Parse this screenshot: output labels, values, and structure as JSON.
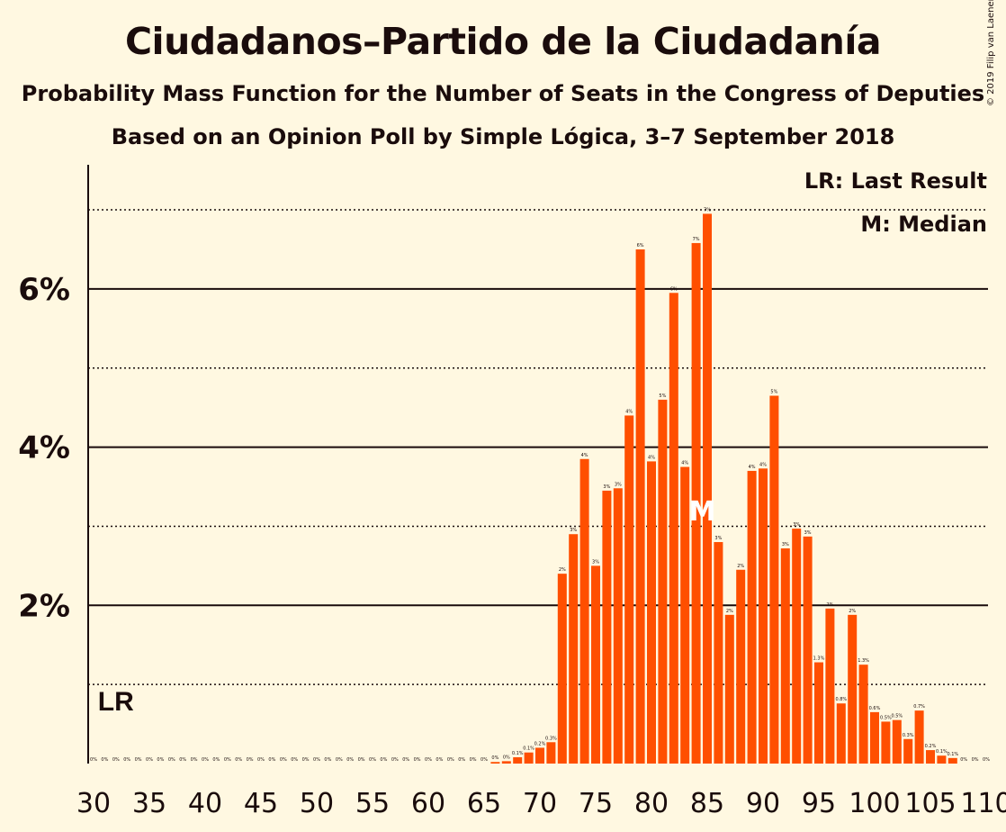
{
  "title": "Ciudadanos–Partido de la Ciudadanía",
  "subtitle": "Probability Mass Function for the Number of Seats in the Congress of Deputies",
  "subtitle2": "Based on an Opinion Poll by Simple Lógica, 3–7 September 2018",
  "copyright": "© 2019 Filip van Laenen",
  "legend": {
    "lr": "LR: Last Result",
    "median": "M: Median"
  },
  "markers": {
    "lr_label": "LR",
    "median_label": "M"
  },
  "colors": {
    "bar": "#FF4F00",
    "background": "#FFF8E1",
    "text": "#1a0c0c"
  },
  "chart_data": {
    "type": "bar",
    "title": "Ciudadanos–Partido de la Ciudadanía",
    "xlabel": "",
    "ylabel": "",
    "ylim": [
      0,
      7.5
    ],
    "yticks": [
      2,
      4,
      6
    ],
    "ytick_labels": [
      "2%",
      "4%",
      "6%"
    ],
    "grid_solid": [
      2,
      4,
      6
    ],
    "grid_dotted": [
      1,
      3,
      5,
      7
    ],
    "xticks": [
      30,
      35,
      40,
      45,
      50,
      55,
      60,
      65,
      70,
      75,
      80,
      85,
      90,
      95,
      100,
      105,
      110
    ],
    "x": [
      30,
      31,
      32,
      33,
      34,
      35,
      36,
      37,
      38,
      39,
      40,
      41,
      42,
      43,
      44,
      45,
      46,
      47,
      48,
      49,
      50,
      51,
      52,
      53,
      54,
      55,
      56,
      57,
      58,
      59,
      60,
      61,
      62,
      63,
      64,
      65,
      66,
      67,
      68,
      69,
      70,
      71,
      72,
      73,
      74,
      75,
      76,
      77,
      78,
      79,
      80,
      81,
      82,
      83,
      84,
      85,
      86,
      87,
      88,
      89,
      90,
      91,
      92,
      93,
      94,
      95,
      96,
      97,
      98,
      99,
      100,
      101,
      102,
      103,
      104,
      105,
      106,
      107,
      108,
      109,
      110
    ],
    "values": [
      0,
      0,
      0,
      0,
      0,
      0,
      0,
      0,
      0,
      0,
      0,
      0,
      0,
      0,
      0,
      0,
      0,
      0,
      0,
      0,
      0,
      0,
      0,
      0,
      0,
      0,
      0,
      0,
      0,
      0,
      0,
      0,
      0,
      0,
      0,
      0,
      0.02,
      0.03,
      0.08,
      0.14,
      0.2,
      0.27,
      2.4,
      2.9,
      3.85,
      2.5,
      3.45,
      3.48,
      4.4,
      6.5,
      3.82,
      4.6,
      5.95,
      3.75,
      6.58,
      6.95,
      2.8,
      1.88,
      2.45,
      3.7,
      3.73,
      4.65,
      2.72,
      2.97,
      2.87,
      1.28,
      1.96,
      0.76,
      1.88,
      1.25,
      0.65,
      0.53,
      0.55,
      0.31,
      0.67,
      0.17,
      0.1,
      0.07,
      0,
      0,
      0
    ],
    "value_labels": [
      "0%",
      "0%",
      "0%",
      "0%",
      "0%",
      "0%",
      "0%",
      "0%",
      "0%",
      "0%",
      "0%",
      "0%",
      "0%",
      "0%",
      "0%",
      "0%",
      "0%",
      "0%",
      "0%",
      "0%",
      "0%",
      "0%",
      "0%",
      "0%",
      "0%",
      "0%",
      "0%",
      "0%",
      "0%",
      "0%",
      "0%",
      "0%",
      "0%",
      "0%",
      "0%",
      "0%",
      "0%",
      "0%",
      "0.1%",
      "0.1%",
      "0.2%",
      "0.3%",
      "2%",
      "3%",
      "4%",
      "3%",
      "3%",
      "3%",
      "4%",
      "6%",
      "4%",
      "5%",
      "6%",
      "4%",
      "7%",
      "7%",
      "3%",
      "2%",
      "2%",
      "4%",
      "4%",
      "5%",
      "3%",
      "3%",
      "3%",
      "1.3%",
      "2%",
      "0.8%",
      "2%",
      "1.3%",
      "0.6%",
      "0.5%",
      "0.5%",
      "0.3%",
      "0.7%",
      "0.2%",
      "0.1%",
      "0.1%",
      "0%",
      "0%",
      "0%"
    ],
    "last_result_seats": 32,
    "median_seats": 84
  }
}
